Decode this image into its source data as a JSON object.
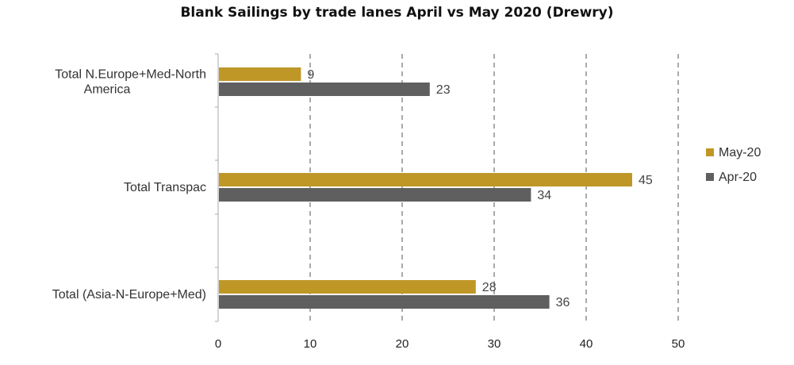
{
  "chart_data": {
    "type": "bar",
    "orientation": "horizontal",
    "title": "Blank Sailings by trade lanes April vs May 2020 (Drewry)",
    "categories": [
      [
        "Total N.Europe+Med-North",
        "America"
      ],
      [
        "Total Transpac"
      ],
      [
        "Total (Asia-N-Europe+Med)"
      ]
    ],
    "series": [
      {
        "name": "May-20",
        "color": "#BF9727",
        "values": [
          9,
          45,
          28
        ]
      },
      {
        "name": "Apr-20",
        "color": "#5F5F5F",
        "values": [
          23,
          34,
          36
        ]
      }
    ],
    "xlim": [
      0,
      50
    ],
    "xticks": [
      0,
      10,
      20,
      30,
      40,
      50
    ],
    "grid": "vertical dashed",
    "legend_position": "right"
  }
}
